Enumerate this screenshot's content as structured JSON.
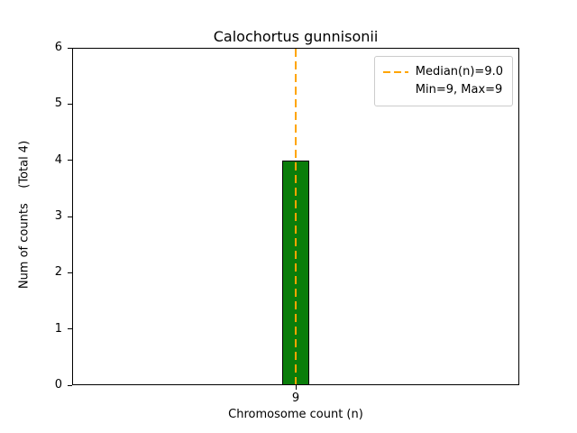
{
  "chart_data": {
    "type": "bar",
    "title": "Calochortus gunnisonii",
    "xlabel": "Chromosome count (n)",
    "ylabel": "Num of counts    (Total 4)",
    "categories": [
      "9"
    ],
    "values": [
      4
    ],
    "ylim": [
      0,
      6
    ],
    "yticks": [
      "0",
      "1",
      "2",
      "3",
      "4",
      "5",
      "6"
    ],
    "grid": false,
    "bar_color": "#0a7d0a",
    "bar_edge_color": "#000000",
    "median_line": {
      "x": 9,
      "color": "#ffa500",
      "style": "dashed"
    },
    "legend": {
      "position": "upper right",
      "entries": [
        {
          "label": "Median(n)=9.0",
          "sample": "dashed-orange-line"
        },
        {
          "label": "Min=9, Max=9",
          "sample": "none"
        }
      ]
    }
  }
}
